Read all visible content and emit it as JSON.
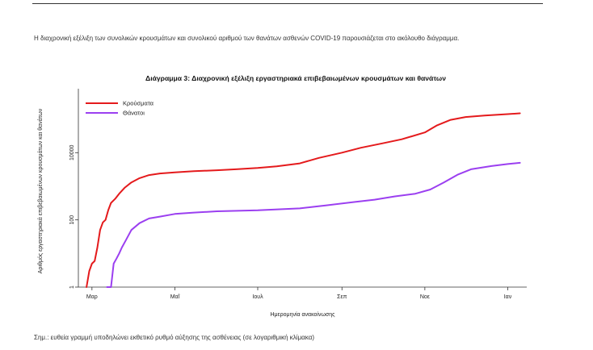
{
  "page": {
    "intro_text": "Η διαχρονική εξέλιξη των συνολικών κρουσμάτων και συνολικού αριθμού των θανάτων ασθενών COVID-19 παρουσιάζεται στο ακόλουθο διάγραμμα.",
    "footnote": "Σημ.: ευθεία γραμμή υποδηλώνει εκθετικό ρυθμό αύξησης της ασθένειας (σε λογαριθμική κλίμακα)"
  },
  "chart_data": {
    "type": "line",
    "title": "Διάγραμμα 3: Διαχρονική εξέλιξη εργαστηριακά επιβεβαιωμένων κρουσμάτων και θανάτων",
    "xlabel": "Ημερομηνία ανακοίνωσης",
    "ylabel": "Αριθμός εργαστηριακά επιβεβαιωμένων κρουσμάτων και θανάτων",
    "y_scale": "log",
    "ylim": [
      1,
      800000
    ],
    "yticks": [
      1,
      100,
      10000
    ],
    "ytick_labels": [
      "1",
      "100",
      "10000"
    ],
    "xlim": [
      "2020-02-20",
      "2021-01-15"
    ],
    "xticks": [
      "2020-03-01",
      "2020-05-01",
      "2020-07-01",
      "2020-09-01",
      "2020-11-01",
      "2021-01-01"
    ],
    "xtick_labels": [
      "Μαρ",
      "Μαΐ",
      "Ιουλ",
      "Σεπ",
      "Νοε",
      "Ιαν"
    ],
    "grid": false,
    "legend_position": "top-left",
    "series": [
      {
        "name": "Κρούσματα",
        "color": "#e41a1c",
        "points": [
          [
            "2020-02-26",
            1
          ],
          [
            "2020-02-28",
            3
          ],
          [
            "2020-03-01",
            5
          ],
          [
            "2020-03-03",
            6
          ],
          [
            "2020-03-05",
            15
          ],
          [
            "2020-03-07",
            50
          ],
          [
            "2020-03-09",
            84
          ],
          [
            "2020-03-11",
            100
          ],
          [
            "2020-03-13",
            195
          ],
          [
            "2020-03-15",
            320
          ],
          [
            "2020-03-18",
            420
          ],
          [
            "2020-03-21",
            600
          ],
          [
            "2020-03-25",
            900
          ],
          [
            "2020-03-30",
            1300
          ],
          [
            "2020-04-05",
            1750
          ],
          [
            "2020-04-12",
            2150
          ],
          [
            "2020-04-20",
            2400
          ],
          [
            "2020-05-01",
            2600
          ],
          [
            "2020-05-15",
            2800
          ],
          [
            "2020-06-01",
            3000
          ],
          [
            "2020-06-15",
            3200
          ],
          [
            "2020-07-01",
            3500
          ],
          [
            "2020-07-15",
            3900
          ],
          [
            "2020-08-01",
            4800
          ],
          [
            "2020-08-15",
            7000
          ],
          [
            "2020-09-01",
            10000
          ],
          [
            "2020-09-15",
            14000
          ],
          [
            "2020-10-01",
            19000
          ],
          [
            "2020-10-15",
            25000
          ],
          [
            "2020-11-01",
            40000
          ],
          [
            "2020-11-10",
            65000
          ],
          [
            "2020-11-20",
            95000
          ],
          [
            "2020-12-01",
            115000
          ],
          [
            "2020-12-15",
            128000
          ],
          [
            "2021-01-01",
            140000
          ],
          [
            "2021-01-10",
            148000
          ]
        ]
      },
      {
        "name": "Θάνατοι",
        "color": "#9b3ff0",
        "points": [
          [
            "2020-03-12",
            1
          ],
          [
            "2020-03-15",
            1
          ],
          [
            "2020-03-17",
            5
          ],
          [
            "2020-03-19",
            7
          ],
          [
            "2020-03-21",
            10
          ],
          [
            "2020-03-23",
            15
          ],
          [
            "2020-03-26",
            25
          ],
          [
            "2020-03-30",
            50
          ],
          [
            "2020-04-05",
            80
          ],
          [
            "2020-04-12",
            110
          ],
          [
            "2020-04-20",
            125
          ],
          [
            "2020-05-01",
            150
          ],
          [
            "2020-05-15",
            165
          ],
          [
            "2020-06-01",
            180
          ],
          [
            "2020-07-01",
            192
          ],
          [
            "2020-08-01",
            220
          ],
          [
            "2020-08-20",
            270
          ],
          [
            "2020-09-10",
            340
          ],
          [
            "2020-09-25",
            400
          ],
          [
            "2020-10-10",
            500
          ],
          [
            "2020-10-25",
            600
          ],
          [
            "2020-11-05",
            800
          ],
          [
            "2020-11-15",
            1300
          ],
          [
            "2020-11-25",
            2200
          ],
          [
            "2020-12-05",
            3200
          ],
          [
            "2020-12-20",
            4000
          ],
          [
            "2021-01-01",
            4600
          ],
          [
            "2021-01-10",
            5000
          ]
        ]
      }
    ]
  }
}
